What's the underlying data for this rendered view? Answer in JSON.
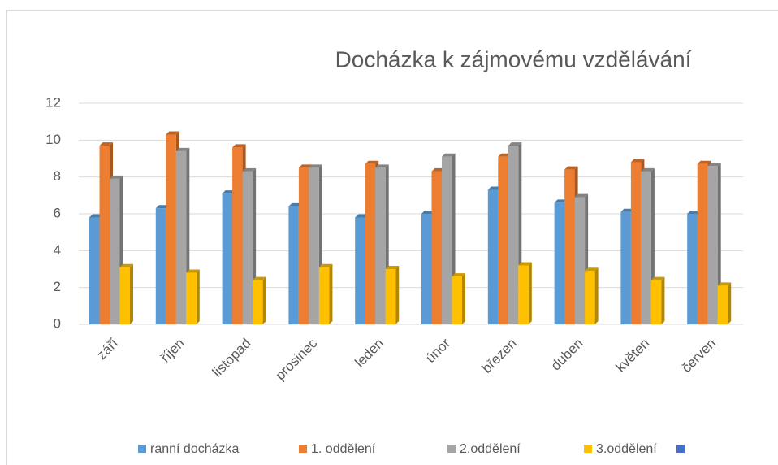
{
  "chart_data": {
    "type": "bar3d",
    "title": "Docházka k zájmovému vzdělávání",
    "categories": [
      "září",
      "říjen",
      "listopad",
      "prosinec",
      "leden",
      "únor",
      "březen",
      "duben",
      "květen",
      "červen"
    ],
    "series": [
      {
        "name": "ranní docházka",
        "color": "#5b9bd5",
        "values": [
          5.8,
          6.3,
          7.1,
          6.4,
          5.8,
          6.0,
          7.3,
          6.6,
          6.1,
          6.0
        ]
      },
      {
        "name": "1. oddělení",
        "color": "#ed7d31",
        "values": [
          9.7,
          10.3,
          9.6,
          8.5,
          8.7,
          8.3,
          9.1,
          8.4,
          8.8,
          8.7
        ]
      },
      {
        "name": "2.oddělení",
        "color": "#a5a5a5",
        "values": [
          7.9,
          9.4,
          8.3,
          8.5,
          8.5,
          9.1,
          9.7,
          6.9,
          8.3,
          8.6
        ]
      },
      {
        "name": "3.oddělení",
        "color": "#ffc000",
        "values": [
          3.1,
          2.8,
          2.4,
          3.1,
          3.0,
          2.6,
          3.2,
          2.9,
          2.4,
          2.1
        ]
      }
    ],
    "ylim": [
      0,
      12
    ],
    "yticks": [
      0,
      2,
      4,
      6,
      8,
      10,
      12
    ],
    "grid": true,
    "legend": "bottom"
  }
}
